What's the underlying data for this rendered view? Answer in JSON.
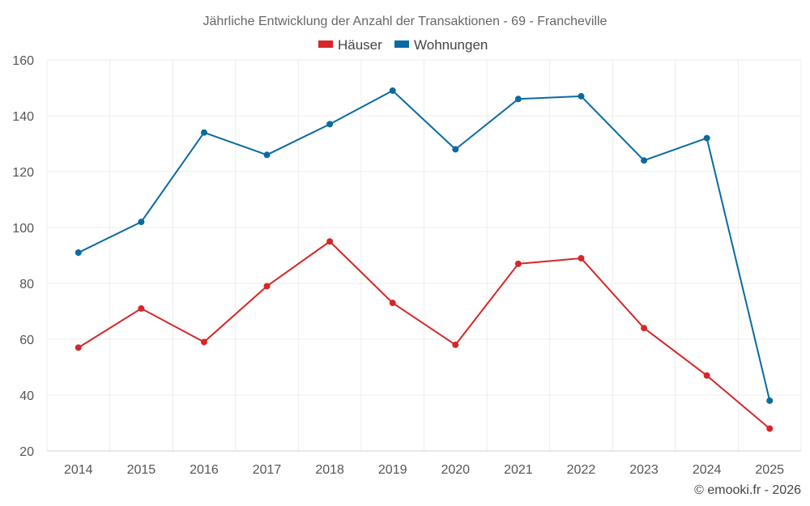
{
  "chart_data": {
    "type": "line",
    "title": "Jährliche Entwicklung der Anzahl der Transaktionen - 69 - Francheville",
    "categories": [
      "2014",
      "2015",
      "2016",
      "2017",
      "2018",
      "2019",
      "2020",
      "2021",
      "2022",
      "2023",
      "2024",
      "2025"
    ],
    "series": [
      {
        "name": "Häuser",
        "color": "#d62728",
        "values": [
          57,
          71,
          59,
          79,
          95,
          73,
          58,
          87,
          89,
          64,
          47,
          28
        ]
      },
      {
        "name": "Wohnungen",
        "color": "#0a6aa1",
        "values": [
          91,
          102,
          134,
          126,
          137,
          149,
          128,
          146,
          147,
          124,
          132,
          38
        ]
      }
    ],
    "ylim": [
      20,
      160
    ],
    "yticks": [
      20,
      40,
      60,
      80,
      100,
      120,
      140,
      160
    ],
    "xlabel": "",
    "ylabel": "",
    "legend": "top-center",
    "grid": true,
    "credit": "© emooki.fr - 2026"
  }
}
